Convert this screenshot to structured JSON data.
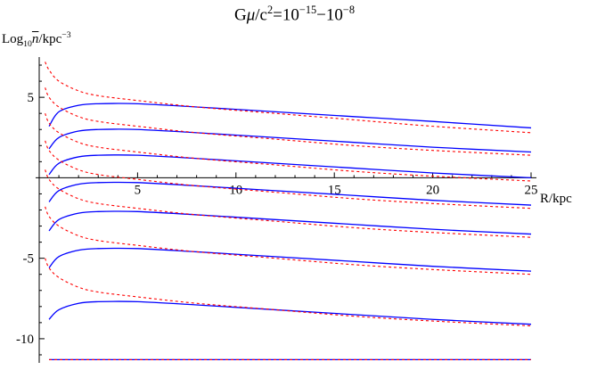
{
  "title": {
    "prefix": "G",
    "mu": "μ",
    "mid": "/c",
    "sq": "2",
    "eq": "=10",
    "e1": "−15",
    "dash": "−10",
    "e2": "−8"
  },
  "ylabel": {
    "log": "Log",
    "sub": "10",
    "n": "n",
    "unit": "/kpc",
    "exp": "−3"
  },
  "xlabel": "R/kpc",
  "chart_data": {
    "type": "line",
    "xlim": [
      0,
      25
    ],
    "ylim": [
      -11.5,
      7.5
    ],
    "x_ticks": [
      5,
      10,
      15,
      20,
      25
    ],
    "y_ticks": [
      -10,
      -5,
      5
    ],
    "x_tick_labels": [
      "5",
      "10",
      "15",
      "20",
      "25"
    ],
    "y_tick_labels": [
      "-10",
      "-5",
      "5"
    ],
    "series": [
      {
        "style": "solid",
        "color": "#0000ff",
        "x": [
          0.5,
          1,
          2,
          3,
          5,
          8,
          12,
          16,
          20,
          25
        ],
        "y": [
          3.2,
          4.1,
          4.5,
          4.6,
          4.6,
          4.4,
          4.1,
          3.8,
          3.5,
          3.1
        ]
      },
      {
        "style": "dashed",
        "color": "#ff0000",
        "x": [
          0.3,
          0.5,
          1,
          2,
          3,
          5,
          8,
          12,
          16,
          20,
          25
        ],
        "y": [
          7.2,
          6.7,
          6.0,
          5.4,
          5.1,
          4.8,
          4.4,
          4.0,
          3.6,
          3.2,
          2.8
        ]
      },
      {
        "style": "solid",
        "color": "#0000ff",
        "x": [
          0.5,
          1,
          2,
          3,
          5,
          8,
          12,
          16,
          20,
          25
        ],
        "y": [
          1.8,
          2.5,
          2.9,
          3.0,
          3.0,
          2.8,
          2.5,
          2.2,
          1.9,
          1.6
        ]
      },
      {
        "style": "dashed",
        "color": "#ff0000",
        "x": [
          0.3,
          0.5,
          1,
          2,
          3,
          5,
          8,
          12,
          16,
          20,
          25
        ],
        "y": [
          5.6,
          5.0,
          4.4,
          3.8,
          3.5,
          3.2,
          2.8,
          2.4,
          2.0,
          1.7,
          1.4
        ]
      },
      {
        "style": "solid",
        "color": "#0000ff",
        "x": [
          0.5,
          1,
          2,
          3,
          5,
          8,
          12,
          16,
          20,
          25
        ],
        "y": [
          0.2,
          0.9,
          1.3,
          1.4,
          1.4,
          1.2,
          0.9,
          0.6,
          0.3,
          0.0
        ]
      },
      {
        "style": "dashed",
        "color": "#ff0000",
        "x": [
          0.3,
          0.5,
          1,
          2,
          3,
          5,
          8,
          12,
          16,
          20,
          25
        ],
        "y": [
          4.0,
          3.4,
          2.8,
          2.2,
          1.9,
          1.6,
          1.2,
          0.8,
          0.4,
          0.1,
          -0.2
        ]
      },
      {
        "style": "solid",
        "color": "#0000ff",
        "x": [
          0.5,
          1,
          2,
          3,
          5,
          8,
          12,
          16,
          20,
          25
        ],
        "y": [
          -1.5,
          -0.8,
          -0.4,
          -0.3,
          -0.3,
          -0.5,
          -0.8,
          -1.1,
          -1.4,
          -1.7
        ]
      },
      {
        "style": "dashed",
        "color": "#ff0000",
        "x": [
          0.3,
          0.5,
          1,
          2,
          3,
          5,
          8,
          12,
          16,
          20,
          25
        ],
        "y": [
          2.3,
          1.7,
          1.1,
          0.5,
          0.2,
          -0.1,
          -0.5,
          -0.9,
          -1.3,
          -1.6,
          -1.9
        ]
      },
      {
        "style": "solid",
        "color": "#0000ff",
        "x": [
          0.5,
          1,
          2,
          3,
          5,
          8,
          12,
          16,
          20,
          25
        ],
        "y": [
          -3.3,
          -2.6,
          -2.2,
          -2.1,
          -2.1,
          -2.3,
          -2.6,
          -2.9,
          -3.2,
          -3.5
        ]
      },
      {
        "style": "dashed",
        "color": "#ff0000",
        "x": [
          0.3,
          0.5,
          1,
          2,
          3,
          5,
          8,
          12,
          16,
          20,
          25
        ],
        "y": [
          0.5,
          -0.1,
          -0.7,
          -1.3,
          -1.6,
          -1.9,
          -2.3,
          -2.7,
          -3.1,
          -3.4,
          -3.7
        ]
      },
      {
        "style": "solid",
        "color": "#0000ff",
        "x": [
          0.5,
          1,
          2,
          3,
          5,
          8,
          12,
          16,
          20,
          25
        ],
        "y": [
          -5.6,
          -4.9,
          -4.5,
          -4.4,
          -4.4,
          -4.6,
          -4.9,
          -5.2,
          -5.5,
          -5.8
        ]
      },
      {
        "style": "dashed",
        "color": "#ff0000",
        "x": [
          0.3,
          0.5,
          1,
          2,
          3,
          5,
          8,
          12,
          16,
          20,
          25
        ],
        "y": [
          -1.8,
          -2.4,
          -3.0,
          -3.6,
          -3.9,
          -4.2,
          -4.6,
          -5.0,
          -5.4,
          -5.7,
          -6.0
        ]
      },
      {
        "style": "solid",
        "color": "#0000ff",
        "x": [
          0.5,
          1,
          2,
          3,
          5,
          8,
          12,
          16,
          20,
          25
        ],
        "y": [
          -8.8,
          -8.2,
          -7.8,
          -7.7,
          -7.7,
          -7.9,
          -8.2,
          -8.5,
          -8.8,
          -9.1
        ]
      },
      {
        "style": "dashed",
        "color": "#ff0000",
        "x": [
          0.3,
          0.5,
          1,
          2,
          3,
          5,
          8,
          12,
          16,
          20,
          25
        ],
        "y": [
          -5.0,
          -5.6,
          -6.2,
          -6.8,
          -7.1,
          -7.4,
          -7.8,
          -8.2,
          -8.6,
          -8.9,
          -9.2
        ]
      },
      {
        "style": "solid",
        "color": "#0000ff",
        "x": [
          0.5,
          25
        ],
        "y": [
          -11.3,
          -11.3
        ]
      },
      {
        "style": "dashed",
        "color": "#ff0000",
        "x": [
          0.5,
          25
        ],
        "y": [
          -11.3,
          -11.3
        ]
      }
    ]
  }
}
